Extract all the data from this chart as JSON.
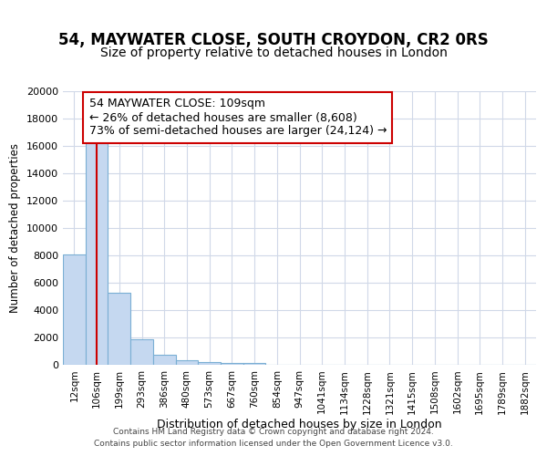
{
  "title1": "54, MAYWATER CLOSE, SOUTH CROYDON, CR2 0RS",
  "title2": "Size of property relative to detached houses in London",
  "xlabel": "Distribution of detached houses by size in London",
  "ylabel": "Number of detached properties",
  "bin_labels": [
    "12sqm",
    "106sqm",
    "199sqm",
    "293sqm",
    "386sqm",
    "480sqm",
    "573sqm",
    "667sqm",
    "760sqm",
    "854sqm",
    "947sqm",
    "1041sqm",
    "1134sqm",
    "1228sqm",
    "1321sqm",
    "1415sqm",
    "1508sqm",
    "1602sqm",
    "1695sqm",
    "1789sqm",
    "1882sqm"
  ],
  "bar_heights": [
    8100,
    16600,
    5300,
    1870,
    750,
    310,
    200,
    160,
    155,
    0,
    0,
    0,
    0,
    0,
    0,
    0,
    0,
    0,
    0,
    0,
    0
  ],
  "bar_color": "#c5d8f0",
  "bar_edge_color": "#7aafd4",
  "vline_x": 1.0,
  "vline_color": "#cc0000",
  "annotation_text": "54 MAYWATER CLOSE: 109sqm\n← 26% of detached houses are smaller (8,608)\n73% of semi-detached houses are larger (24,124) →",
  "annotation_box_color": "#ffffff",
  "annotation_box_edge": "#cc0000",
  "ylim": [
    0,
    20000
  ],
  "yticks": [
    0,
    2000,
    4000,
    6000,
    8000,
    10000,
    12000,
    14000,
    16000,
    18000,
    20000
  ],
  "footer1": "Contains HM Land Registry data © Crown copyright and database right 2024.",
  "footer2": "Contains public sector information licensed under the Open Government Licence v3.0.",
  "bg_color": "#ffffff",
  "plot_bg_color": "#ffffff",
  "grid_color": "#d0d8e8",
  "title1_fontsize": 12,
  "title2_fontsize": 10,
  "ann_fontsize": 9
}
